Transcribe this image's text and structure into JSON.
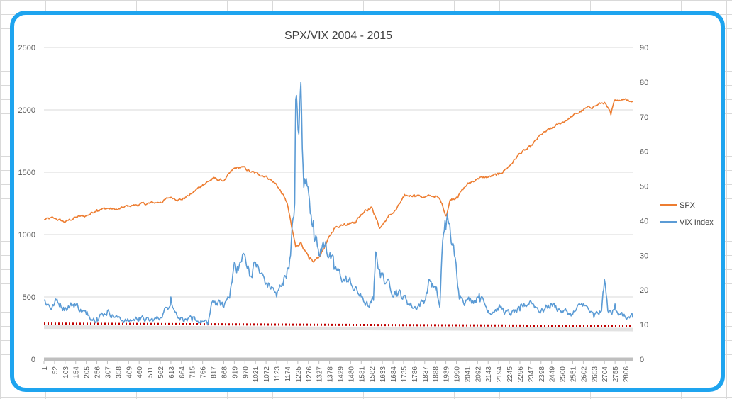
{
  "chart_data": {
    "type": "line",
    "title": "SPX/VIX 2004 - 2015",
    "xlabel": "",
    "ylabel": "",
    "y_left": {
      "min": 0,
      "max": 2500,
      "ticks": [
        "0",
        "500",
        "1000",
        "1500",
        "2000",
        "2500"
      ]
    },
    "y_right": {
      "min": 0,
      "max": 90,
      "ticks": [
        "0",
        "10",
        "20",
        "30",
        "40",
        "50",
        "60",
        "70",
        "80",
        "90"
      ]
    },
    "x_range": [
      1,
      2840
    ],
    "x_tick_labels": [
      "1",
      "52",
      "103",
      "154",
      "205",
      "256",
      "307",
      "358",
      "409",
      "460",
      "511",
      "562",
      "613",
      "664",
      "715",
      "766",
      "817",
      "868",
      "919",
      "970",
      "1021",
      "1072",
      "1123",
      "1174",
      "1225",
      "1276",
      "1327",
      "1378",
      "1429",
      "1480",
      "1531",
      "1582",
      "1633",
      "1684",
      "1735",
      "1786",
      "1837",
      "1888",
      "1939",
      "1990",
      "2041",
      "2092",
      "2143",
      "2194",
      "2245",
      "2296",
      "2347",
      "2398",
      "2449",
      "2500",
      "2551",
      "2602",
      "2653",
      "2704",
      "2755",
      "2806"
    ],
    "legend": [
      "SPX",
      "VIX Index"
    ],
    "colors": {
      "spx": "#ed7d31",
      "vix": "#5b9bd5",
      "ref_line": "#c00000"
    },
    "series": [
      {
        "name": "SPX",
        "axis": "left",
        "x": [
          1,
          50,
          103,
          154,
          205,
          256,
          307,
          358,
          409,
          460,
          511,
          562,
          613,
          664,
          715,
          766,
          817,
          868,
          919,
          960,
          1000,
          1072,
          1123,
          1160,
          1174,
          1195,
          1215,
          1240,
          1260,
          1280,
          1300,
          1327,
          1360,
          1400,
          1450,
          1500,
          1550,
          1582,
          1600,
          1620,
          1660,
          1700,
          1736,
          1786,
          1837,
          1888,
          1900,
          1920,
          1940,
          1960,
          1990,
          2041,
          2092,
          2143,
          2194,
          2245,
          2296,
          2347,
          2398,
          2449,
          2500,
          2551,
          2602,
          2653,
          2704,
          2735,
          2755,
          2806,
          2840
        ],
        "values": [
          1120,
          1130,
          1100,
          1140,
          1150,
          1200,
          1210,
          1200,
          1230,
          1240,
          1250,
          1260,
          1300,
          1280,
          1330,
          1400,
          1450,
          1430,
          1530,
          1540,
          1500,
          1470,
          1400,
          1300,
          1250,
          1060,
          900,
          940,
          870,
          800,
          780,
          820,
          920,
          1050,
          1090,
          1100,
          1200,
          1220,
          1140,
          1050,
          1140,
          1200,
          1300,
          1320,
          1300,
          1310,
          1300,
          1250,
          1150,
          1280,
          1300,
          1400,
          1450,
          1460,
          1480,
          1550,
          1650,
          1700,
          1800,
          1850,
          1900,
          1950,
          2000,
          2030,
          2060,
          1960,
          2080,
          2090,
          2070
        ]
      },
      {
        "name": "VIX Index",
        "axis": "right",
        "x": [
          1,
          40,
          60,
          103,
          150,
          205,
          256,
          307,
          358,
          409,
          460,
          511,
          562,
          595,
          613,
          630,
          664,
          715,
          766,
          790,
          817,
          868,
          900,
          919,
          930,
          950,
          970,
          1000,
          1021,
          1040,
          1072,
          1110,
          1123,
          1150,
          1174,
          1190,
          1210,
          1215,
          1230,
          1240,
          1250,
          1270,
          1300,
          1327,
          1360,
          1400,
          1430,
          1480,
          1531,
          1570,
          1590,
          1600,
          1620,
          1650,
          1700,
          1750,
          1786,
          1837,
          1860,
          1890,
          1910,
          1920,
          1935,
          1950,
          1980,
          2000,
          2041,
          2092,
          2100,
          2143,
          2194,
          2245,
          2296,
          2347,
          2398,
          2449,
          2500,
          2551,
          2602,
          2653,
          2690,
          2704,
          2720,
          2740,
          2755,
          2780,
          2806,
          2840
        ],
        "values": [
          17,
          15,
          17,
          15,
          16,
          13,
          12,
          14,
          12,
          11,
          12,
          11,
          12,
          15,
          18,
          14,
          12,
          11,
          11,
          10,
          17,
          15,
          20,
          28,
          25,
          28,
          30,
          24,
          28,
          25,
          22,
          20,
          18,
          22,
          26,
          30,
          45,
          75,
          65,
          80,
          56,
          50,
          40,
          30,
          34,
          26,
          24,
          22,
          18,
          15,
          17,
          31,
          26,
          22,
          20,
          17,
          15,
          17,
          23,
          20,
          15,
          30,
          40,
          40,
          30,
          20,
          17,
          18,
          19,
          14,
          15,
          13,
          14,
          17,
          14,
          16,
          14,
          13,
          16,
          12,
          14,
          23,
          14,
          13,
          16,
          13,
          12,
          12
        ]
      }
    ],
    "reference_line": {
      "axis": "right",
      "start_value": 10.3,
      "end_value": 9.6,
      "style": "dotted"
    }
  }
}
